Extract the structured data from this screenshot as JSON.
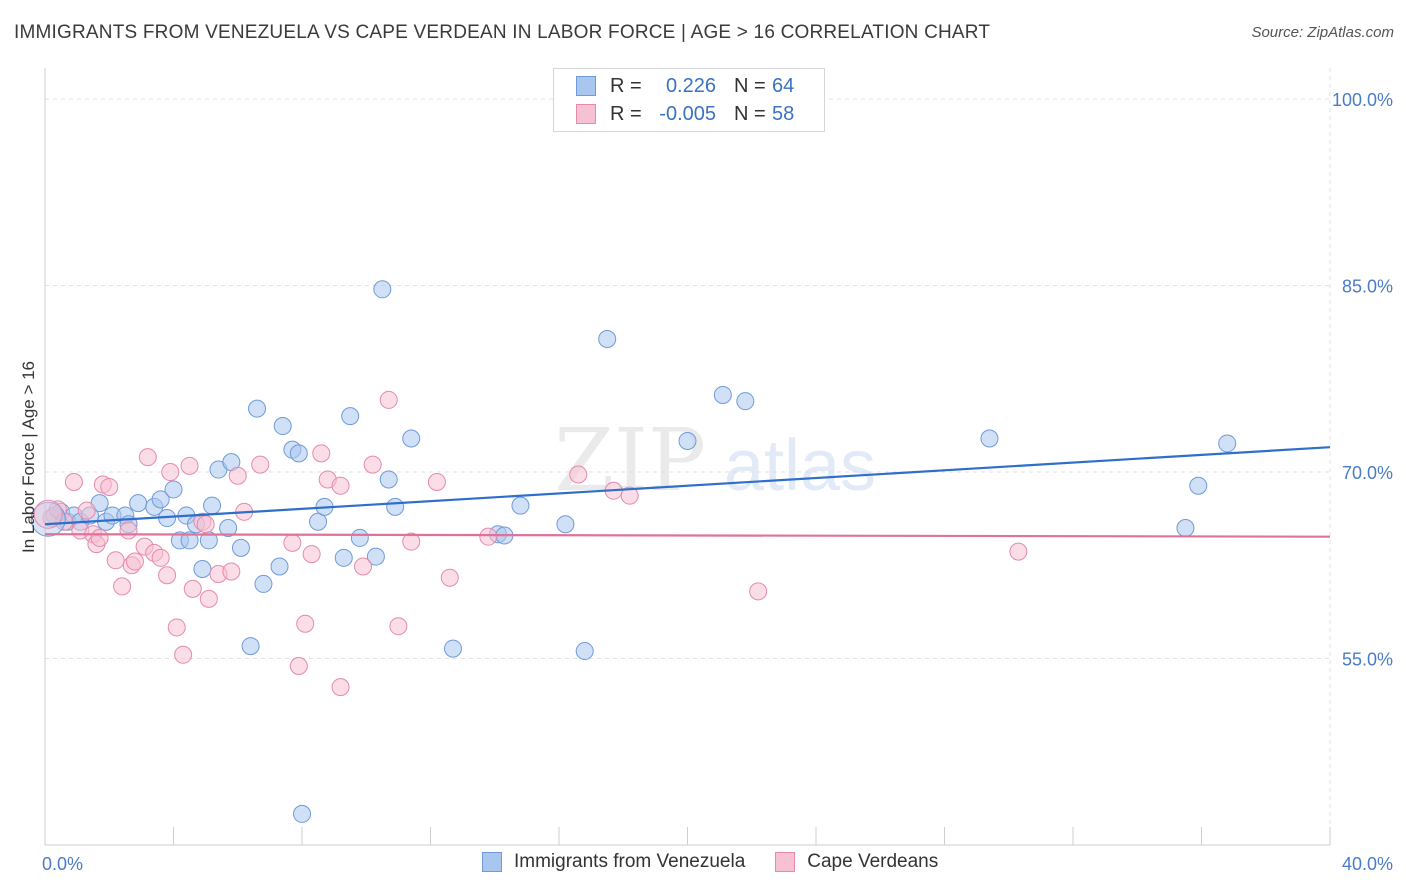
{
  "title": "IMMIGRANTS FROM VENEZUELA VS CAPE VERDEAN IN LABOR FORCE | AGE > 16 CORRELATION CHART",
  "source": "Source: ZipAtlas.com",
  "watermark": {
    "zip": "ZIP",
    "atlas": "atlas"
  },
  "legend_top": {
    "rows": [
      {
        "r_label": "R =",
        "r_value": "0.226",
        "n_label": "N =",
        "n_value": "64",
        "color": "#a9c6ee",
        "border": "#6f9bd8"
      },
      {
        "r_label": "R =",
        "r_value": "-0.005",
        "n_label": "N =",
        "n_value": "58",
        "color": "#f6c1d3",
        "border": "#e58aaa"
      }
    ]
  },
  "chart_data": {
    "type": "scatter",
    "ylabel": "In Labor Force | Age > 16",
    "xlim": [
      0,
      40
    ],
    "ylim": [
      40,
      102.5
    ],
    "x_tick_labels": [
      {
        "value": 0,
        "label": "0.0%"
      },
      {
        "value": 40,
        "label": "40.0%"
      }
    ],
    "y_tick_labels": [
      {
        "value": 100,
        "label": "100.0%"
      },
      {
        "value": 85,
        "label": "85.0%"
      },
      {
        "value": 70,
        "label": "70.0%"
      },
      {
        "value": 55,
        "label": "55.0%"
      }
    ],
    "grid": true,
    "legend_position": "bottom-center",
    "series": [
      {
        "name": "Immigrants from Venezuela",
        "color": "#a9c6ee",
        "stroke": "#6f9bd8",
        "trend_color": "#2f6fca",
        "trend": {
          "x": [
            0,
            40
          ],
          "y": [
            65.8,
            72.0
          ]
        },
        "points": [
          [
            0.3,
            66.5
          ],
          [
            0.5,
            66.8
          ],
          [
            0.7,
            66.0
          ],
          [
            0.9,
            66.5
          ],
          [
            1.1,
            66.0
          ],
          [
            1.4,
            66.5
          ],
          [
            1.7,
            67.5
          ],
          [
            1.9,
            66.0
          ],
          [
            2.1,
            66.5
          ],
          [
            2.5,
            66.5
          ],
          [
            2.6,
            65.8
          ],
          [
            2.9,
            67.5
          ],
          [
            3.4,
            67.2
          ],
          [
            3.6,
            67.8
          ],
          [
            3.8,
            66.3
          ],
          [
            4.0,
            68.6
          ],
          [
            4.2,
            64.5
          ],
          [
            4.4,
            66.5
          ],
          [
            4.5,
            64.5
          ],
          [
            4.7,
            65.8
          ],
          [
            4.9,
            62.2
          ],
          [
            5.1,
            64.5
          ],
          [
            5.2,
            67.3
          ],
          [
            5.4,
            70.2
          ],
          [
            5.7,
            65.5
          ],
          [
            5.8,
            70.8
          ],
          [
            6.1,
            63.9
          ],
          [
            6.4,
            56.0
          ],
          [
            6.6,
            75.1
          ],
          [
            6.8,
            61.0
          ],
          [
            7.3,
            62.4
          ],
          [
            7.4,
            73.7
          ],
          [
            7.7,
            71.8
          ],
          [
            7.9,
            71.5
          ],
          [
            8.0,
            42.5
          ],
          [
            8.5,
            66.0
          ],
          [
            8.7,
            67.2
          ],
          [
            9.3,
            63.1
          ],
          [
            9.5,
            74.5
          ],
          [
            9.8,
            64.7
          ],
          [
            10.3,
            63.2
          ],
          [
            10.5,
            84.7
          ],
          [
            10.7,
            69.4
          ],
          [
            10.9,
            67.2
          ],
          [
            11.4,
            72.7
          ],
          [
            12.7,
            55.8
          ],
          [
            14.1,
            65.0
          ],
          [
            14.3,
            64.9
          ],
          [
            14.8,
            67.3
          ],
          [
            16.2,
            65.8
          ],
          [
            16.8,
            55.6
          ],
          [
            17.5,
            80.7
          ],
          [
            20.0,
            72.5
          ],
          [
            21.1,
            76.2
          ],
          [
            21.8,
            75.7
          ],
          [
            29.4,
            72.7
          ],
          [
            35.5,
            65.5
          ],
          [
            35.9,
            68.9
          ],
          [
            36.8,
            72.3
          ]
        ]
      },
      {
        "name": "Cape Verdeans",
        "color": "#f6c1d3",
        "stroke": "#e58aaa",
        "trend_color": "#e0729a",
        "trend": {
          "x": [
            0,
            40
          ],
          "y": [
            65.0,
            64.8
          ]
        },
        "points": [
          [
            0.2,
            66.3
          ],
          [
            0.4,
            67.0
          ],
          [
            0.6,
            66.0
          ],
          [
            0.9,
            69.2
          ],
          [
            1.1,
            65.3
          ],
          [
            1.3,
            66.9
          ],
          [
            1.5,
            65.0
          ],
          [
            1.6,
            64.2
          ],
          [
            1.7,
            64.7
          ],
          [
            1.8,
            69.0
          ],
          [
            2.0,
            68.8
          ],
          [
            2.2,
            62.9
          ],
          [
            2.4,
            60.8
          ],
          [
            2.6,
            65.3
          ],
          [
            2.7,
            62.5
          ],
          [
            2.8,
            62.8
          ],
          [
            3.1,
            64.0
          ],
          [
            3.2,
            71.2
          ],
          [
            3.4,
            63.5
          ],
          [
            3.6,
            63.1
          ],
          [
            3.8,
            61.7
          ],
          [
            3.9,
            70.0
          ],
          [
            4.1,
            57.5
          ],
          [
            4.3,
            55.3
          ],
          [
            4.5,
            70.5
          ],
          [
            4.6,
            60.6
          ],
          [
            4.9,
            66.0
          ],
          [
            5.0,
            65.8
          ],
          [
            5.1,
            59.8
          ],
          [
            5.4,
            61.8
          ],
          [
            5.8,
            62.0
          ],
          [
            6.0,
            69.7
          ],
          [
            6.2,
            66.8
          ],
          [
            6.7,
            70.6
          ],
          [
            7.7,
            64.3
          ],
          [
            7.9,
            54.4
          ],
          [
            8.1,
            57.8
          ],
          [
            8.3,
            63.4
          ],
          [
            8.6,
            71.5
          ],
          [
            8.8,
            69.4
          ],
          [
            9.2,
            68.9
          ],
          [
            9.2,
            52.7
          ],
          [
            9.9,
            62.4
          ],
          [
            10.2,
            70.6
          ],
          [
            10.7,
            75.8
          ],
          [
            11.0,
            57.6
          ],
          [
            11.4,
            64.4
          ],
          [
            12.2,
            69.2
          ],
          [
            12.6,
            61.5
          ],
          [
            13.8,
            64.8
          ],
          [
            16.6,
            69.8
          ],
          [
            17.7,
            68.5
          ],
          [
            18.2,
            68.1
          ],
          [
            22.2,
            60.4
          ],
          [
            30.3,
            63.6
          ]
        ]
      }
    ]
  }
}
